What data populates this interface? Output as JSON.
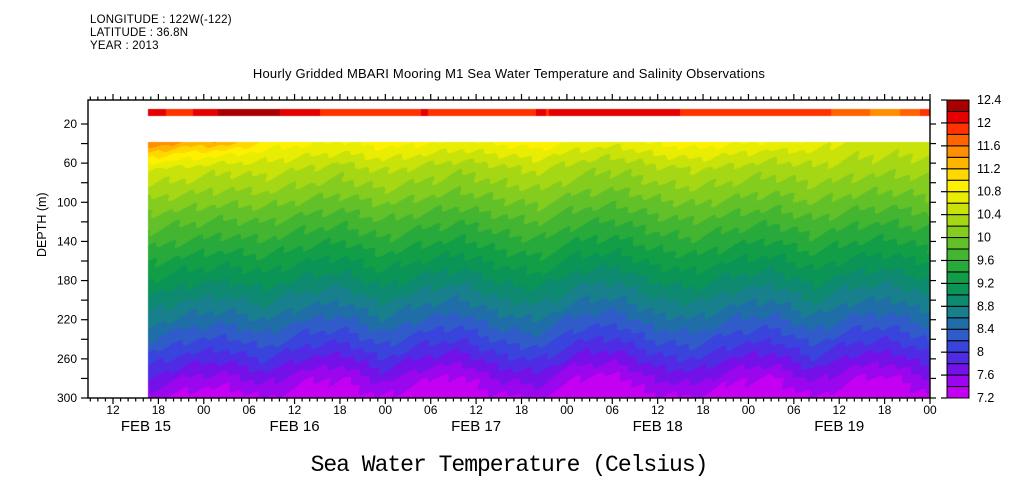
{
  "header": {
    "line1": "LONGITUDE : 122W(-122)",
    "line2": "LATITUDE : 36.8N",
    "line3": "YEAR : 2013"
  },
  "title": "Hourly Gridded MBARI Mooring M1 Sea Water Temperature and Salinity Observations",
  "footer_title": "Sea Water Temperature (Celsius)",
  "axes": {
    "y_label": "DEPTH (m)",
    "y_unit": "m",
    "y_tick_interval_m": 20,
    "y_labeled_ticks": [
      20,
      60,
      100,
      140,
      180,
      220,
      260,
      300
    ],
    "x_minor_tick_h": 1,
    "x_major_tick_h": 6,
    "x_hour_labels": [
      "12",
      "18",
      "00",
      "06",
      "12",
      "18",
      "00",
      "06",
      "12",
      "18",
      "00",
      "06",
      "12",
      "18",
      "00",
      "06",
      "12",
      "18",
      "00"
    ],
    "x_day_labels": [
      "FEB 15",
      "FEB 16",
      "FEB 17",
      "FEB 18",
      "FEB 19"
    ]
  },
  "colorbar": {
    "min_c": 7.2,
    "max_c": 12.4,
    "cell_step_c": 0.2,
    "label_step_c": 0.4,
    "labels": [
      "12.4",
      "12",
      "11.6",
      "11.2",
      "10.8",
      "10.4",
      "10",
      "9.6",
      "9.2",
      "8.8",
      "8.4",
      "8",
      "7.6",
      "7.2"
    ],
    "colors_bottom_to_top": [
      "#C400F2",
      "#9A06EE",
      "#7410E8",
      "#4F2BE4",
      "#3944DC",
      "#2F5CC8",
      "#1F6EA8",
      "#17808C",
      "#0E8A70",
      "#0A9455",
      "#129E46",
      "#27AA3B",
      "#43B531",
      "#62C128",
      "#84CC1E",
      "#A6D714",
      "#C8E20A",
      "#E8ED02",
      "#FDF000",
      "#FFD800",
      "#FFB400",
      "#FF8E00",
      "#FF6400",
      "#FF3200",
      "#E60000",
      "#A80000"
    ]
  },
  "chart_data": {
    "type": "filled_contour",
    "title": "Hourly Gridded MBARI Mooring M1 Sea Water Temperature and Salinity Observations",
    "value_label": "Sea Water Temperature (Celsius)",
    "x_axis_hours_since_feb15_00": {
      "start": 8.7,
      "end": 120
    },
    "data_start_hour": 16.6,
    "depth_range_m": [
      0,
      300
    ],
    "contour_interval_c": 0.2,
    "times_h": [
      16.5,
      21.7,
      26.9,
      32.0,
      37.2,
      42.4,
      47.6,
      52.7,
      57.9,
      63.1,
      68.3,
      73.4,
      78.6,
      83.8,
      89.0,
      94.1,
      99.3,
      104.5,
      109.7,
      114.8,
      120.0
    ],
    "surface_band": {
      "depth_top_m": 4.5,
      "depth_bottom_m": 11.5,
      "temps_c": [
        12.05,
        11.95,
        12.25,
        12.3,
        12.05,
        11.95,
        11.9,
        12.0,
        11.95,
        11.9,
        12.0,
        12.05,
        12.15,
        12.1,
        11.95,
        11.9,
        11.95,
        11.9,
        11.7,
        11.5,
        11.9
      ]
    },
    "no_data_gap_m": {
      "from": 11.5,
      "to": 38
    },
    "grid": {
      "depths_m": [
        38,
        50,
        65,
        80,
        100,
        120,
        140,
        160,
        180,
        200,
        220,
        240,
        260,
        280,
        300
      ],
      "temps_c": [
        [
          11.65,
          11.35,
          11.35,
          10.95,
          10.85,
          10.78,
          10.92,
          10.85,
          10.75,
          10.85,
          10.95,
          10.75,
          10.68,
          10.85,
          10.92,
          10.85,
          10.78,
          10.75,
          10.55,
          10.5,
          10.55
        ],
        [
          11.15,
          10.95,
          10.85,
          10.72,
          10.65,
          10.58,
          10.7,
          10.62,
          10.52,
          10.62,
          10.7,
          10.52,
          10.46,
          10.62,
          10.7,
          10.6,
          10.52,
          10.56,
          10.45,
          10.42,
          10.45
        ],
        [
          10.6,
          10.55,
          10.45,
          10.5,
          10.4,
          10.3,
          10.45,
          10.35,
          10.25,
          10.35,
          10.45,
          10.28,
          10.22,
          10.35,
          10.42,
          10.35,
          10.28,
          10.36,
          10.3,
          10.26,
          10.3
        ],
        [
          10.42,
          10.35,
          10.28,
          10.32,
          10.22,
          10.15,
          10.28,
          10.18,
          10.1,
          10.2,
          10.28,
          10.12,
          10.08,
          10.2,
          10.26,
          10.18,
          10.12,
          10.22,
          10.14,
          10.1,
          10.16
        ],
        [
          10.15,
          10.08,
          10.02,
          10.06,
          9.96,
          9.9,
          10.02,
          9.94,
          9.86,
          9.96,
          10.04,
          9.88,
          9.84,
          9.96,
          10.02,
          9.94,
          9.88,
          10.0,
          9.9,
          9.86,
          9.94
        ],
        [
          9.9,
          9.82,
          9.76,
          9.8,
          9.7,
          9.64,
          9.78,
          9.68,
          9.6,
          9.72,
          9.8,
          9.62,
          9.58,
          9.72,
          9.78,
          9.68,
          9.62,
          9.76,
          9.64,
          9.6,
          9.7
        ],
        [
          9.68,
          9.58,
          9.52,
          9.58,
          9.46,
          9.4,
          9.56,
          9.44,
          9.36,
          9.5,
          9.58,
          9.38,
          9.34,
          9.5,
          9.56,
          9.44,
          9.38,
          9.54,
          9.4,
          9.36,
          9.48
        ],
        [
          9.44,
          9.32,
          9.26,
          9.34,
          9.2,
          9.14,
          9.32,
          9.18,
          9.1,
          9.26,
          9.34,
          9.12,
          9.08,
          9.26,
          9.32,
          9.18,
          9.12,
          9.3,
          9.14,
          9.1,
          9.24
        ],
        [
          9.2,
          9.06,
          9.0,
          9.1,
          8.94,
          8.88,
          9.08,
          8.92,
          8.84,
          9.02,
          9.1,
          8.86,
          8.82,
          9.02,
          9.08,
          8.92,
          8.86,
          9.06,
          8.88,
          8.84,
          9.0
        ],
        [
          8.96,
          8.8,
          8.74,
          8.86,
          8.68,
          8.62,
          8.84,
          8.66,
          8.58,
          8.78,
          8.86,
          8.6,
          8.56,
          8.78,
          8.84,
          8.66,
          8.6,
          8.82,
          8.62,
          8.58,
          8.76
        ],
        [
          8.7,
          8.52,
          8.46,
          8.6,
          8.4,
          8.34,
          8.58,
          8.38,
          8.3,
          8.52,
          8.6,
          8.32,
          8.28,
          8.52,
          8.58,
          8.38,
          8.32,
          8.56,
          8.34,
          8.3,
          8.5
        ],
        [
          8.42,
          8.22,
          8.16,
          8.32,
          8.1,
          8.04,
          8.3,
          8.08,
          8.0,
          8.24,
          8.32,
          8.02,
          7.98,
          8.24,
          8.3,
          8.08,
          8.02,
          8.28,
          8.04,
          8.0,
          8.22
        ],
        [
          8.12,
          7.9,
          7.84,
          8.02,
          7.78,
          7.72,
          8.0,
          7.76,
          7.68,
          7.94,
          8.02,
          7.7,
          7.66,
          7.94,
          8.0,
          7.76,
          7.7,
          7.98,
          7.72,
          7.68,
          7.92
        ],
        [
          7.8,
          7.56,
          7.5,
          7.7,
          7.44,
          7.38,
          7.68,
          7.42,
          7.34,
          7.62,
          7.7,
          7.36,
          7.32,
          7.62,
          7.68,
          7.42,
          7.36,
          7.66,
          7.4,
          7.34,
          7.6
        ],
        [
          7.45,
          7.28,
          7.24,
          7.4,
          7.22,
          7.24,
          7.38,
          7.22,
          7.26,
          7.34,
          7.4,
          7.22,
          7.24,
          7.34,
          7.38,
          7.24,
          7.22,
          7.36,
          7.24,
          7.22,
          7.34
        ]
      ]
    },
    "fine_ripple": {
      "amp1_c": 0.04,
      "freq1_per_h": 2.51,
      "amp2_c": 0.03,
      "freq2_per_h": 1.13
    }
  }
}
